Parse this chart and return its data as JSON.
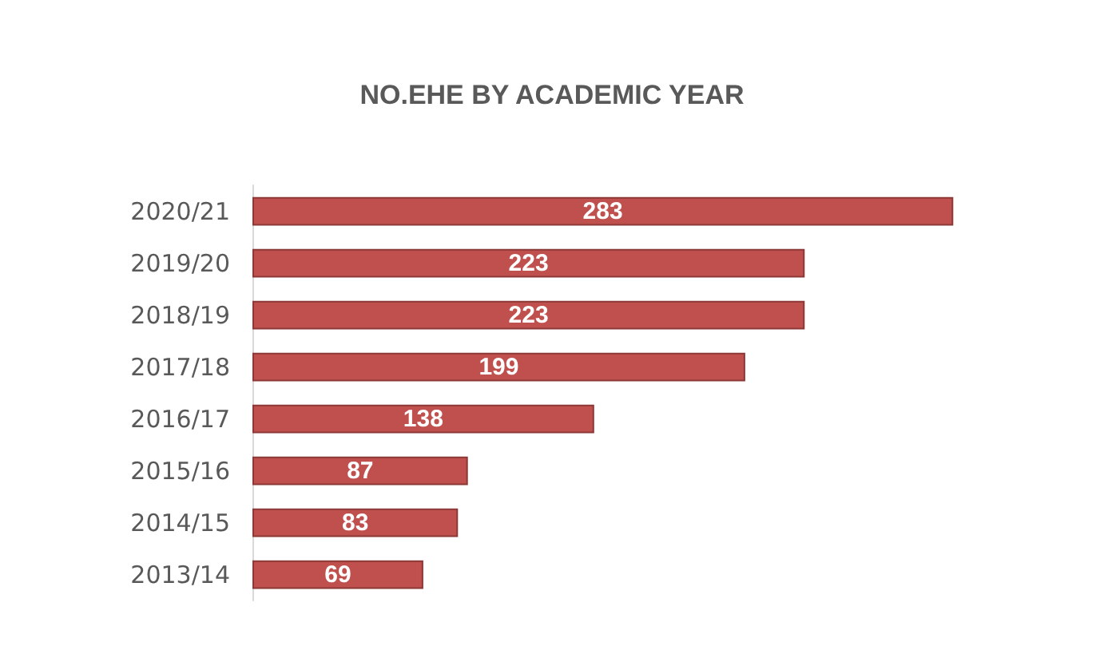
{
  "chart_data": {
    "type": "bar",
    "title": "NO.EHE BY ACADEMIC YEAR",
    "orientation": "horizontal",
    "categories": [
      "2020/21",
      "2019/20",
      "2018/19",
      "2017/18",
      "2016/17",
      "2015/16",
      "2014/15",
      "2013/14"
    ],
    "values": [
      283,
      223,
      223,
      199,
      138,
      87,
      83,
      69
    ],
    "color": "#c0504d",
    "data_labels": true,
    "tick_labels": "y",
    "grid": false
  }
}
